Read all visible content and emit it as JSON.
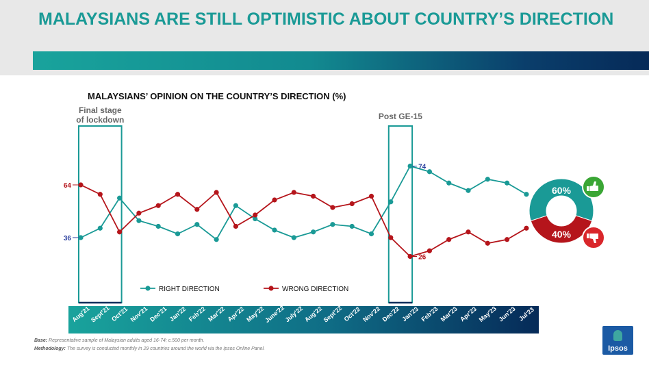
{
  "page": {
    "title": "MALAYSIANS ARE STILL OPTIMISTIC ABOUT COUNTRY’S DIRECTION"
  },
  "footer": {
    "base_label": "Base:",
    "base_text": "Representative sample of Malaysian adults aged 16-74; c.500 per month.",
    "method_label": "Methodology:",
    "method_text": "The survey is conducted monthly in 29 countries around the world via the Ipsos Online Panel.",
    "logo_text": "Ipsos"
  },
  "colors": {
    "right": "#1a9a96",
    "wrong": "#b5151b",
    "axis_start": "#19a39c",
    "axis_end": "#062a58",
    "thumb_up": "#3aa635",
    "thumb_down": "#d9262b"
  },
  "icons": {
    "up": "thumbs-up-icon",
    "down": "thumbs-down-icon"
  },
  "chart_data": {
    "type": "line",
    "title": "MALAYSIANS’ OPINION ON THE COUNTRY’S DIRECTION (%)",
    "categories": [
      "Aug'21",
      "Sept'21",
      "Oct'21",
      "Nov'21",
      "Dec'21",
      "Jan'22",
      "Feb'22",
      "Mar'22",
      "Apr'22",
      "May'22",
      "June'22",
      "July'22",
      "Aug'22",
      "Sept'22",
      "Oct'22",
      "Nov'22",
      "Dec'22",
      "Jan'23",
      "Feb'23",
      "Mar'23",
      "Apr'23",
      "May'23",
      "Jun'23",
      "Jul'23"
    ],
    "series": [
      {
        "name": "RIGHT DIRECTION",
        "values": [
          36,
          41,
          57,
          45,
          42,
          38,
          43,
          35,
          53,
          46,
          40,
          36,
          39,
          43,
          42,
          38,
          55,
          74,
          71,
          65,
          61,
          67,
          65,
          59
        ]
      },
      {
        "name": "WRONG DIRECTION",
        "values": [
          64,
          59,
          39,
          49,
          53,
          59,
          51,
          60,
          42,
          48,
          56,
          60,
          58,
          52,
          54,
          58,
          36,
          26,
          29,
          35,
          39,
          33,
          35,
          41
        ]
      }
    ],
    "data_labels": [
      {
        "series": "RIGHT DIRECTION",
        "category": "Aug'21",
        "text": "36"
      },
      {
        "series": "WRONG DIRECTION",
        "category": "Aug'21",
        "text": "64"
      },
      {
        "series": "RIGHT DIRECTION",
        "category": "Jan'23",
        "text": "74"
      },
      {
        "series": "WRONG DIRECTION",
        "category": "Jan'23",
        "text": "26"
      }
    ],
    "annotations": [
      {
        "from": "Aug'21",
        "to": "Oct'21",
        "text": "Final stage of lockdown"
      },
      {
        "from": "Dec'22",
        "to": "Jan'23",
        "text": "Post GE-15"
      }
    ],
    "donut": [
      {
        "name": "RIGHT DIRECTION",
        "value": 60,
        "label": "60%"
      },
      {
        "name": "WRONG DIRECTION",
        "value": 40,
        "label": "40%"
      }
    ],
    "legend_position": "bottom",
    "grid": false
  }
}
